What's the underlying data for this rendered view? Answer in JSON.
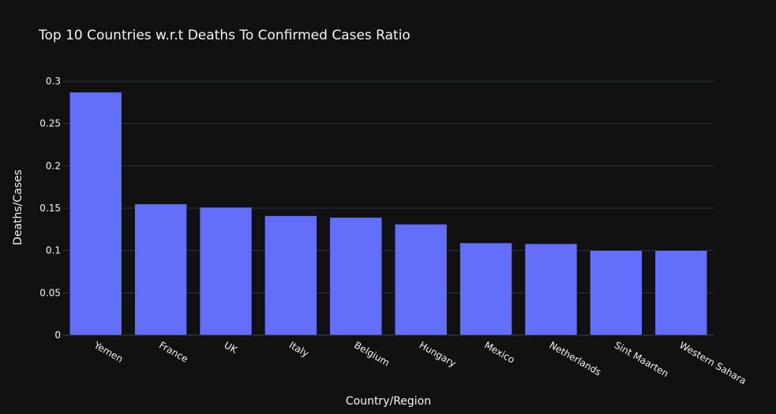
{
  "colors": {
    "background": "#111111",
    "bar": "#636efa",
    "grid": "#283442",
    "text": "#f2f5fa"
  },
  "chart_data": {
    "type": "bar",
    "title": "Top 10 Countries w.r.t Deaths To Confirmed Cases Ratio",
    "xlabel": "Country/Region",
    "ylabel": "Deaths/Cases",
    "categories": [
      "Yemen",
      "France",
      "UK",
      "Italy",
      "Belgium",
      "Hungary",
      "Mexico",
      "Netherlands",
      "Sint Maarten",
      "Western Sahara"
    ],
    "values": [
      0.287,
      0.155,
      0.151,
      0.141,
      0.139,
      0.131,
      0.109,
      0.108,
      0.1,
      0.1
    ],
    "ylim": [
      0,
      0.3
    ],
    "yticks": [
      0,
      0.05,
      0.1,
      0.15,
      0.2,
      0.25,
      0.3
    ],
    "ytick_labels": [
      "0",
      "0.05",
      "0.1",
      "0.15",
      "0.2",
      "0.25",
      "0.3"
    ],
    "grid": true,
    "legend": false
  }
}
